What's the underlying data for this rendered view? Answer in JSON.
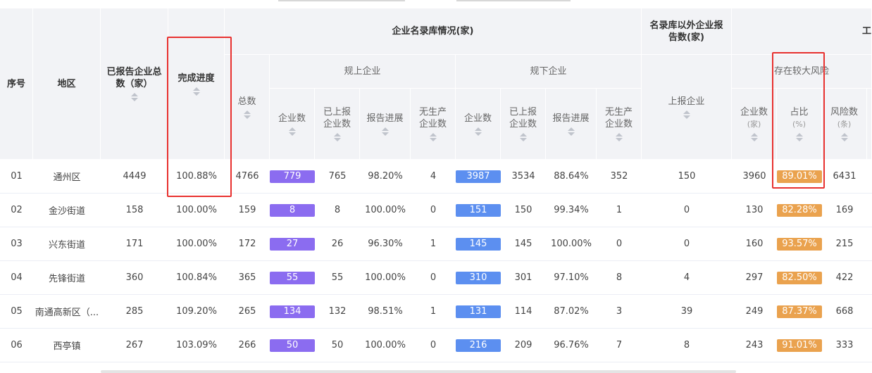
{
  "header": {
    "seq": "序号",
    "region": "地区",
    "reported_total": "已报告企业总数（家）",
    "completion": "完成进度",
    "directory_group": "企业名录库情况(家)",
    "total": "总数",
    "above_scale": "规上企业",
    "below_scale": "规下企业",
    "company_count": "企业数",
    "reported_count": "已上报企业数",
    "report_progress": "报告进展",
    "no_production": "无生产企业数",
    "outside_group": "名录库以外企业报告数(家)",
    "outside_reported": "上报企业",
    "right_group_partial": "工",
    "risk_group": "存在较大风险",
    "risk_company_count": "企业数",
    "risk_company_unit": "(家)",
    "risk_ratio": "占比",
    "risk_ratio_unit": "(%)",
    "risk_count": "风险数",
    "risk_count_unit": "(条)"
  },
  "rows": [
    {
      "seq": "01",
      "region": "通州区",
      "reported_total": "4449",
      "completion": "100.88%",
      "total": "4766",
      "above_count": "779",
      "above_reported": "765",
      "above_progress": "98.20%",
      "above_noprod": "4",
      "below_count": "3987",
      "below_reported": "3534",
      "below_progress": "88.64%",
      "below_noprod": "352",
      "outside": "150",
      "risk_count": "3960",
      "risk_ratio": "89.01%",
      "risk_items": "6431"
    },
    {
      "seq": "02",
      "region": "金沙街道",
      "reported_total": "158",
      "completion": "100.00%",
      "total": "159",
      "above_count": "8",
      "above_reported": "8",
      "above_progress": "100.00%",
      "above_noprod": "0",
      "below_count": "151",
      "below_reported": "150",
      "below_progress": "99.34%",
      "below_noprod": "1",
      "outside": "0",
      "risk_count": "130",
      "risk_ratio": "82.28%",
      "risk_items": "169"
    },
    {
      "seq": "03",
      "region": "兴东街道",
      "reported_total": "171",
      "completion": "100.00%",
      "total": "172",
      "above_count": "27",
      "above_reported": "26",
      "above_progress": "96.30%",
      "above_noprod": "1",
      "below_count": "145",
      "below_reported": "145",
      "below_progress": "100.00%",
      "below_noprod": "0",
      "outside": "0",
      "risk_count": "160",
      "risk_ratio": "93.57%",
      "risk_items": "215"
    },
    {
      "seq": "04",
      "region": "先锋街道",
      "reported_total": "360",
      "completion": "100.84%",
      "total": "365",
      "above_count": "55",
      "above_reported": "55",
      "above_progress": "100.00%",
      "above_noprod": "0",
      "below_count": "310",
      "below_reported": "301",
      "below_progress": "97.10%",
      "below_noprod": "8",
      "outside": "4",
      "risk_count": "297",
      "risk_ratio": "82.50%",
      "risk_items": "422"
    },
    {
      "seq": "05",
      "region": "南通高新区（...",
      "reported_total": "285",
      "completion": "109.20%",
      "total": "265",
      "above_count": "134",
      "above_reported": "132",
      "above_progress": "98.51%",
      "above_noprod": "1",
      "below_count": "131",
      "below_reported": "114",
      "below_progress": "87.02%",
      "below_noprod": "3",
      "outside": "39",
      "risk_count": "249",
      "risk_ratio": "87.37%",
      "risk_items": "668"
    },
    {
      "seq": "06",
      "region": "西亭镇",
      "reported_total": "267",
      "completion": "103.09%",
      "total": "266",
      "above_count": "50",
      "above_reported": "50",
      "above_progress": "100.00%",
      "above_noprod": "0",
      "below_count": "216",
      "below_reported": "209",
      "below_progress": "96.76%",
      "below_noprod": "7",
      "outside": "8",
      "risk_count": "243",
      "risk_ratio": "91.01%",
      "risk_items": "333"
    }
  ],
  "colors": {
    "above_pill": "#8b6cf0",
    "below_pill": "#5c8ff0",
    "ratio_pill": "#eaa24e",
    "highlight": "#e8312f",
    "header_bg": "#f2f3f6"
  }
}
